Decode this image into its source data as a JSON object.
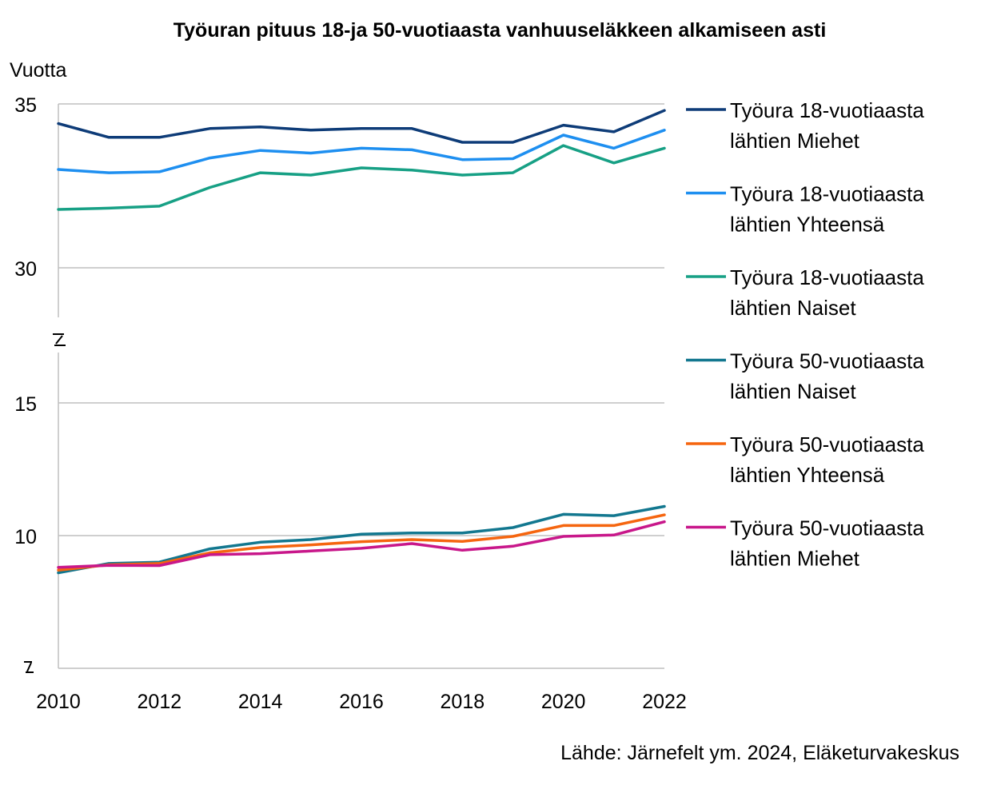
{
  "chart_data": {
    "type": "line",
    "title": "Työuran pituus 18-ja 50-vuotiaasta vanhuuseläkkeen alkamiseen asti",
    "ylabel": "Vuotta",
    "xlabel": "",
    "x": [
      2010,
      2011,
      2012,
      2013,
      2014,
      2015,
      2016,
      2017,
      2018,
      2019,
      2020,
      2021,
      2022
    ],
    "x_tick_labels": [
      "2010",
      "2012",
      "2014",
      "2016",
      "2018",
      "2020",
      "2022"
    ],
    "y_tick_labels_upper": [
      "35",
      "30"
    ],
    "y_tick_labels_lower": [
      "15",
      "10"
    ],
    "y_axis_break": true,
    "upper_panel_ylim": [
      28.5,
      35
    ],
    "lower_panel_ylim": [
      5,
      17.5
    ],
    "grid": "horizontal",
    "legend_position": "right",
    "series": [
      {
        "name_line1": "Työura 18-vuotiaasta",
        "name_line2": "lähtien Miehet",
        "color": "#0e3c78",
        "panel": "upper",
        "values": [
          34.4,
          33.98,
          33.98,
          34.25,
          34.3,
          34.2,
          34.25,
          34.25,
          33.83,
          33.83,
          34.35,
          34.15,
          34.8
        ]
      },
      {
        "name_line1": "Työura 18-vuotiaasta",
        "name_line2": "lähtien Yhteensä",
        "color": "#1e8ff0",
        "panel": "upper",
        "values": [
          33.0,
          32.9,
          32.93,
          33.35,
          33.58,
          33.5,
          33.65,
          33.6,
          33.3,
          33.33,
          34.05,
          33.65,
          34.2
        ]
      },
      {
        "name_line1": "Työura 18-vuotiaasta",
        "name_line2": "lähtien Naiset",
        "color": "#17a085",
        "panel": "upper",
        "values": [
          31.78,
          31.82,
          31.88,
          32.45,
          32.9,
          32.83,
          33.05,
          32.98,
          32.83,
          32.9,
          33.73,
          33.2,
          33.65
        ]
      },
      {
        "name_line1": "Työura 50-vuotiaasta",
        "name_line2": "lähtien Naiset",
        "color": "#12778f",
        "panel": "lower",
        "values": [
          8.6,
          8.95,
          9.0,
          9.5,
          9.75,
          9.85,
          10.05,
          10.1,
          10.1,
          10.3,
          10.8,
          10.75,
          11.1
        ]
      },
      {
        "name_line1": "Työura 50-vuotiaasta",
        "name_line2": "lähtien Yhteensä",
        "color": "#f5650f",
        "panel": "lower",
        "values": [
          8.7,
          8.9,
          8.95,
          9.35,
          9.55,
          9.65,
          9.77,
          9.85,
          9.78,
          9.97,
          10.38,
          10.38,
          10.78
        ]
      },
      {
        "name_line1": "Työura 50-vuotiaasta",
        "name_line2": "lähtien Miehet",
        "color": "#c8178a",
        "panel": "lower",
        "values": [
          8.8,
          8.88,
          8.87,
          9.28,
          9.32,
          9.42,
          9.52,
          9.7,
          9.45,
          9.6,
          9.97,
          10.02,
          10.52
        ]
      }
    ],
    "source": "Lähde: Järnefelt ym. 2024, Eläketurvakeskus"
  }
}
